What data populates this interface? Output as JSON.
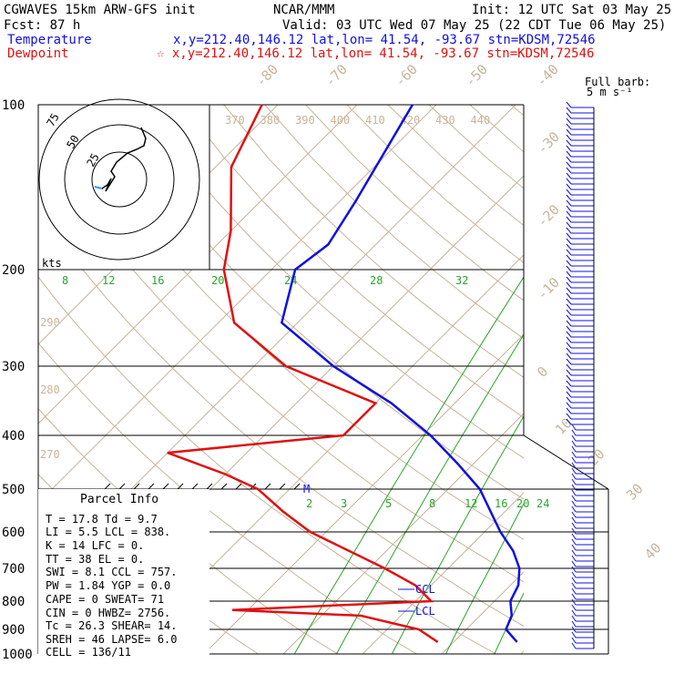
{
  "header": {
    "model": "CGWAVES 15km ARW-GFS init",
    "org": "NCAR/MMM",
    "init": "Init: 12 UTC Sat 03 May 25",
    "fcst": "Fcst:   87 h",
    "valid": "Valid: 03 UTC Wed 07 May 25 (22 CDT Tue 06 May 25)",
    "temp_label": "Temperature",
    "temp_loc": "x,y=212.40,146.12   lat,lon= 41.54, -93.67   stn=KDSM,72546",
    "dew_label": "Dewpoint",
    "dew_loc": "☆ x,y=212.40,146.12   lat,lon= 41.54, -93.67   stn=KDSM,72546"
  },
  "barb_legend": {
    "line1": "Full barb:",
    "line2": "5 m s⁻¹"
  },
  "hodograph": {
    "units": "kts",
    "ring_labels": [
      "25",
      "50",
      "75"
    ]
  },
  "parcel_info": {
    "title": "Parcel Info",
    "rows": [
      "T   =   17.8 Td =   9.7",
      "LI  =    5.5 LCL =  838.",
      "K   =     14 LFC =    0.",
      "TT  =     38 EL  =    0.",
      "SWI =    8.1 CCL =  757.",
      "PW  =   1.84 YGP =  0.0",
      "CAPE =     0 SWEAT=   71",
      "CIN =      0 HWBZ= 2756.",
      "Tc  =   26.3 SHEAR=  14.",
      "SREH =    46 LAPSE=  6.0",
      "CELL = 136/11"
    ]
  },
  "markers": {
    "ccl": "CCL",
    "lcl": "LCL",
    "m": "M"
  },
  "colors": {
    "temperature": "#1010e0",
    "dewpoint": "#e01010",
    "isotherm": "#c8b49a",
    "mixing_ratio": "#2aa52a",
    "grid": "#000000"
  },
  "chart_data": {
    "type": "line",
    "title": "CGWAVES 15km ARW-GFS init",
    "ylabel_ticks": [
      "100",
      "200",
      "300",
      "400",
      "500",
      "600",
      "700",
      "800",
      "900",
      "1000"
    ],
    "pressure_levels_hpa": [
      100,
      200,
      300,
      400,
      500,
      600,
      700,
      800,
      900,
      1000
    ],
    "isotherm_labels": [
      "-80",
      "-70",
      "-60",
      "-50",
      "-40",
      "-30",
      "-20",
      "-10",
      "0",
      "10",
      "20",
      "30",
      "40"
    ],
    "theta_labels_upper": [
      "370",
      "380",
      "390",
      "400",
      "410",
      "420",
      "430",
      "440"
    ],
    "theta_labels_left": [
      "290",
      "280",
      "270"
    ],
    "mixing_ratio_labels_upper": [
      "8",
      "12",
      "16",
      "20",
      "24",
      "28",
      "32"
    ],
    "mixing_ratio_labels_lower": [
      "2",
      "3",
      "5",
      "8",
      "12",
      "16",
      "20",
      "24"
    ],
    "series": [
      {
        "name": "Temperature",
        "p": [
          100,
          150,
          180,
          200,
          250,
          300,
          350,
          400,
          450,
          500,
          600,
          650,
          700,
          750,
          800,
          850,
          900,
          950
        ],
        "values": [
          -63,
          -58,
          -56,
          -57,
          -52,
          -40,
          -28,
          -19,
          -12,
          -6,
          2,
          6,
          9,
          11,
          12,
          14,
          15,
          18
        ]
      },
      {
        "name": "Dewpoint",
        "p": [
          100,
          130,
          170,
          200,
          250,
          300,
          350,
          400,
          430,
          470,
          500,
          550,
          600,
          700,
          750,
          800,
          830,
          850,
          900,
          950
        ],
        "values": [
          -82,
          -78,
          -70,
          -66,
          -58,
          -46,
          -30,
          -30,
          -50,
          -40,
          -34,
          -28,
          -22,
          -8,
          -2,
          2,
          -22,
          -5,
          4,
          8
        ]
      }
    ]
  }
}
